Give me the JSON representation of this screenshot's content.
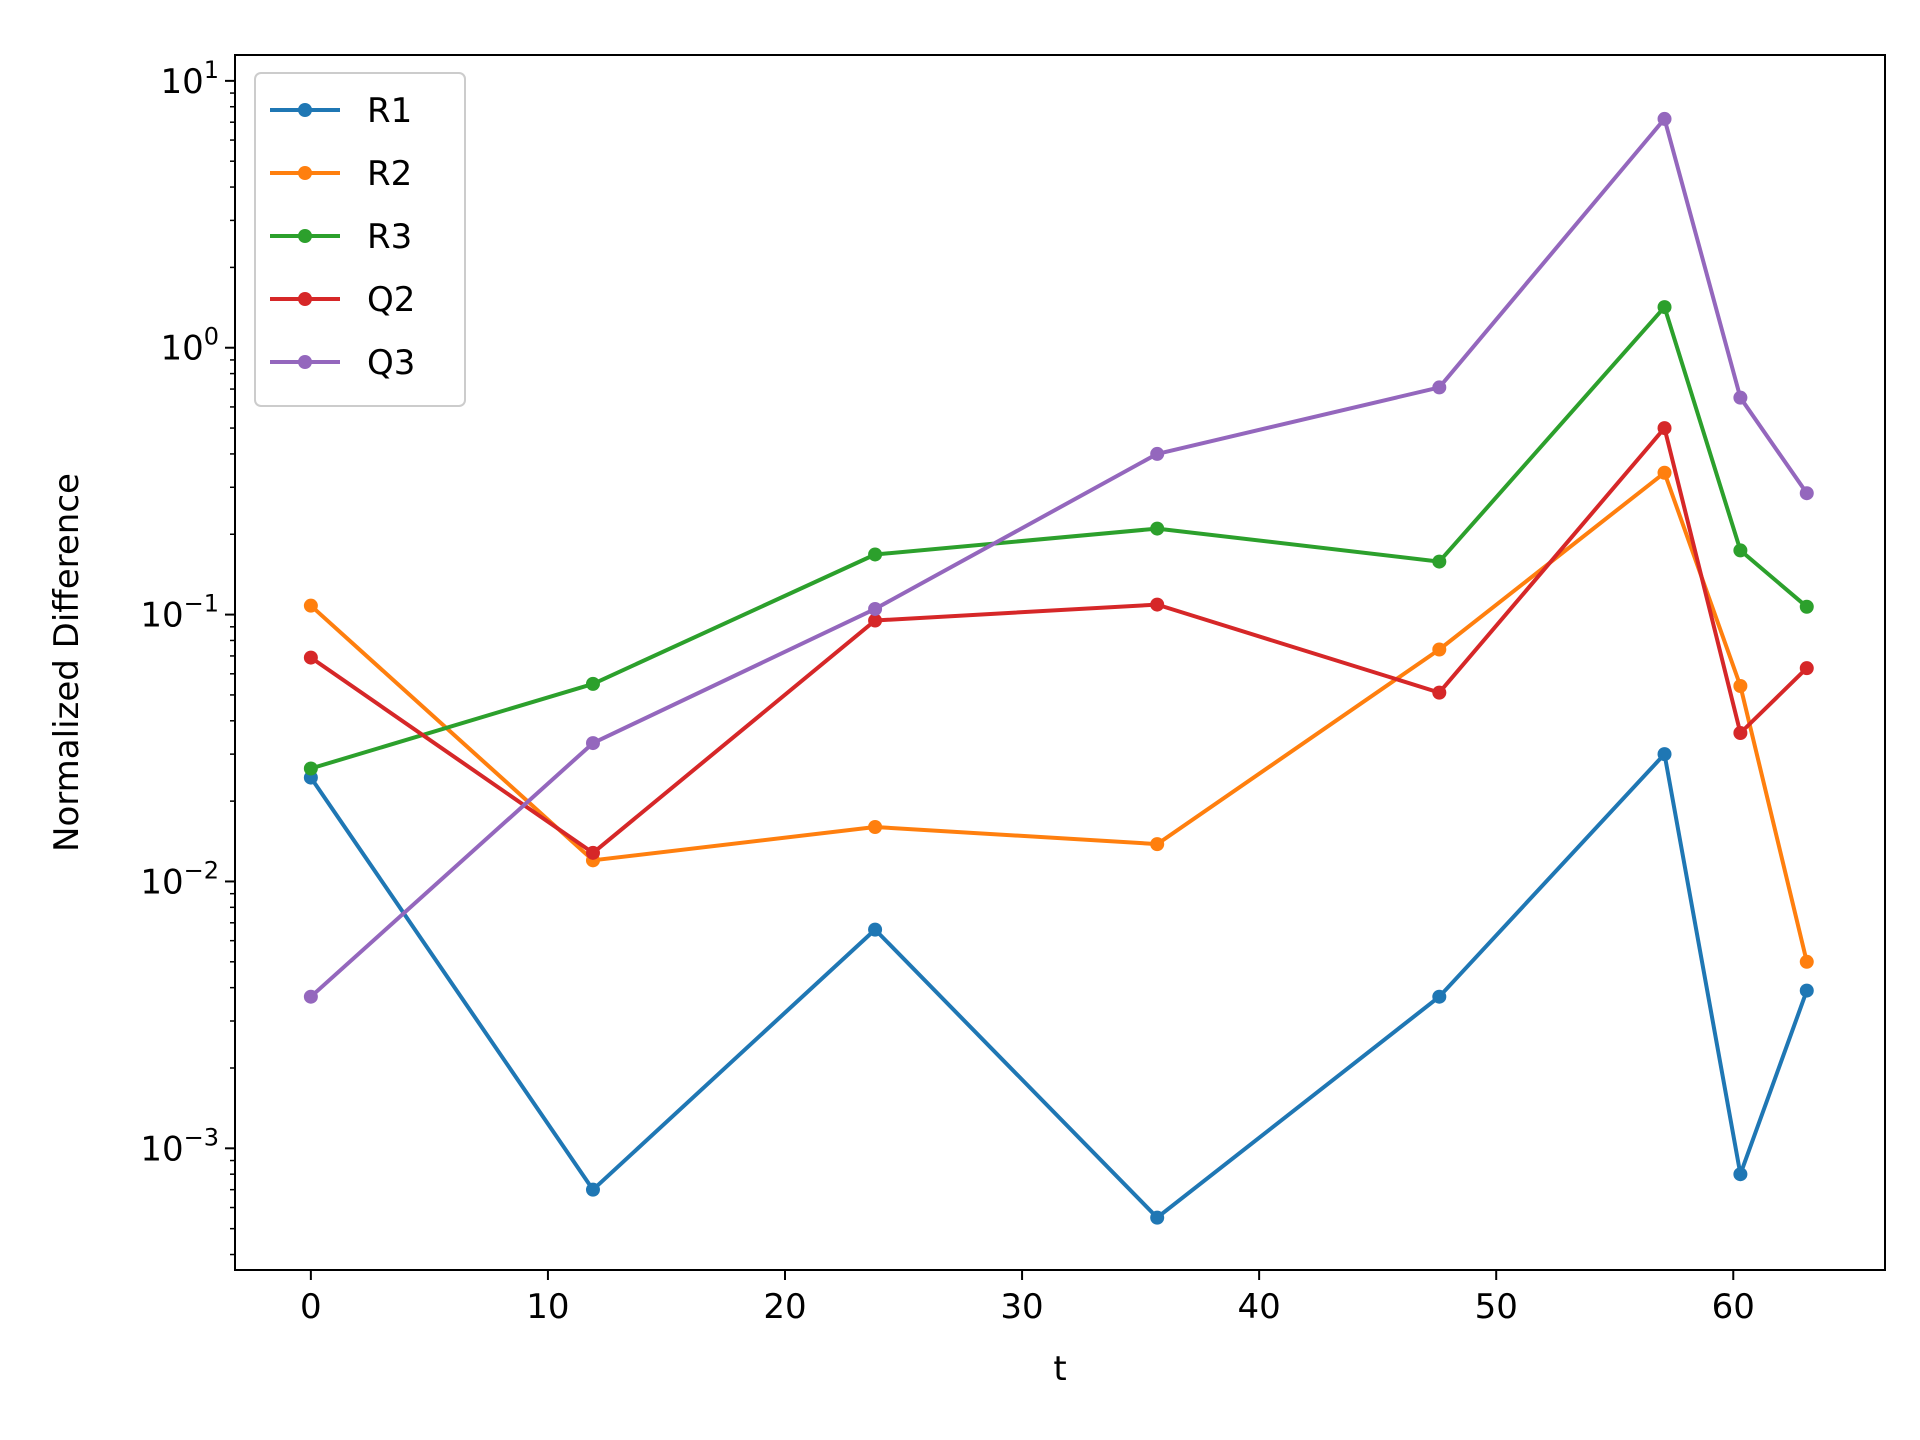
{
  "chart_data": {
    "type": "line",
    "title": "",
    "xlabel": "t",
    "ylabel": "Normalized Difference",
    "yscale": "log",
    "xlim": [
      -3.2,
      66.4
    ],
    "ylim": [
      0.00035,
      12.5
    ],
    "x_ticks": [
      0,
      10,
      20,
      30,
      40,
      50,
      60
    ],
    "x_tick_labels": [
      "0",
      "10",
      "20",
      "30",
      "40",
      "50",
      "60"
    ],
    "y_ticks": [
      0.001,
      0.01,
      0.1,
      1,
      10
    ],
    "y_tick_labels": [
      {
        "base": "10",
        "exp": "−3"
      },
      {
        "base": "10",
        "exp": "−2"
      },
      {
        "base": "10",
        "exp": "−1"
      },
      {
        "base": "10",
        "exp": "0"
      },
      {
        "base": "10",
        "exp": "1"
      }
    ],
    "grid": false,
    "legend_position": "top-left",
    "x": [
      0,
      11.9,
      23.8,
      35.7,
      47.6,
      57.1,
      60.3,
      63.1
    ],
    "series": [
      {
        "name": "R1",
        "color": "#1f77b4",
        "values": [
          0.0245,
          0.0007,
          0.0066,
          0.00055,
          0.0037,
          0.03,
          0.0008,
          0.0039
        ]
      },
      {
        "name": "R2",
        "color": "#ff7f0e",
        "values": [
          0.108,
          0.012,
          0.016,
          0.0138,
          0.074,
          0.34,
          0.054,
          0.005
        ]
      },
      {
        "name": "R3",
        "color": "#2ca02c",
        "values": [
          0.0265,
          0.055,
          0.168,
          0.21,
          0.158,
          1.42,
          0.174,
          0.107
        ]
      },
      {
        "name": "Q2",
        "color": "#d62728",
        "values": [
          0.069,
          0.0128,
          0.095,
          0.109,
          0.051,
          0.5,
          0.036,
          0.063
        ]
      },
      {
        "name": "Q3",
        "color": "#9467bd",
        "values": [
          0.0037,
          0.033,
          0.105,
          0.4,
          0.71,
          7.2,
          0.65,
          0.285
        ]
      }
    ]
  }
}
